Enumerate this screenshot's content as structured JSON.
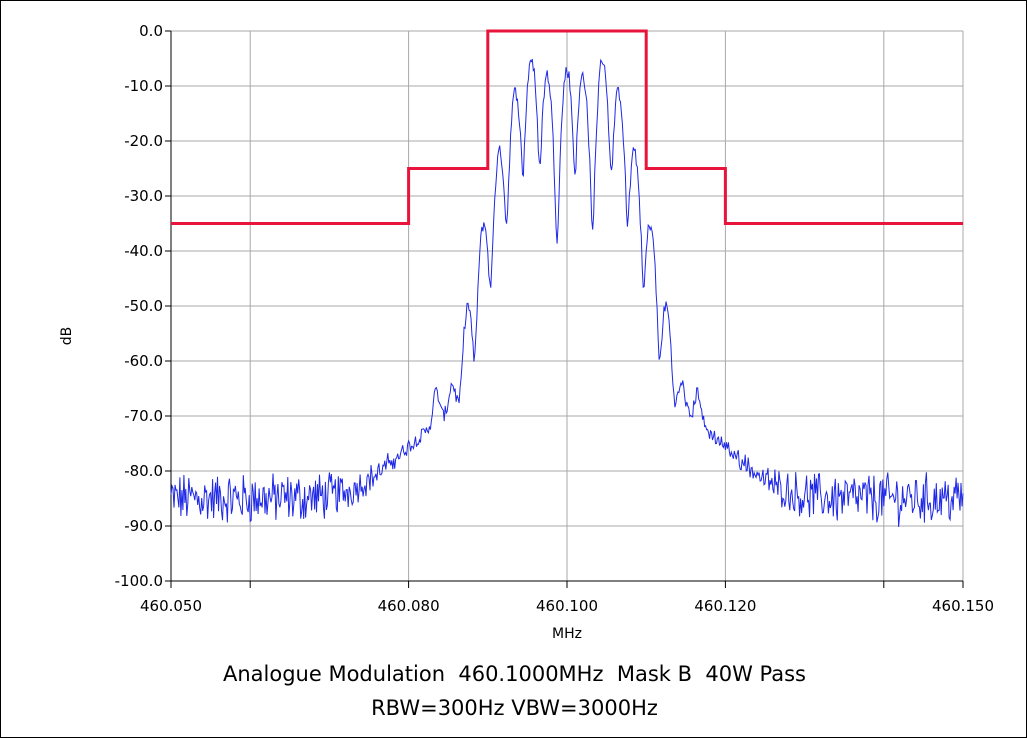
{
  "chart_data": {
    "type": "line",
    "title": "Analogue Modulation  460.1000MHz  Mask B  40W Pass",
    "subtitle": "RBW=300Hz VBW=3000Hz",
    "xlabel": "MHz",
    "ylabel": "dB",
    "xlim": [
      460.05,
      460.15
    ],
    "ylim": [
      -100,
      0
    ],
    "x_ticks": [
      460.05,
      460.06,
      460.08,
      460.1,
      460.12,
      460.14,
      460.15
    ],
    "x_tick_labels": [
      {
        "value": 460.05,
        "label": "460.050"
      },
      {
        "value": 460.08,
        "label": "460.080"
      },
      {
        "value": 460.1,
        "label": "460.100"
      },
      {
        "value": 460.12,
        "label": "460.120"
      },
      {
        "value": 460.15,
        "label": "460.150"
      }
    ],
    "y_ticks": [
      0,
      -10,
      -20,
      -30,
      -40,
      -50,
      -60,
      -70,
      -80,
      -90,
      -100
    ],
    "y_tick_labels": [
      "0.0",
      "-10.0",
      "-20.0",
      "-30.0",
      "-40.0",
      "-50.0",
      "-60.0",
      "-70.0",
      "-80.0",
      "-90.0",
      "-100.0"
    ],
    "grid": true,
    "series": [
      {
        "role": "mask",
        "color": "#e8143c",
        "x": [
          460.05,
          460.08,
          460.08,
          460.09,
          460.09,
          460.11,
          460.11,
          460.12,
          460.12,
          460.15
        ],
        "y": [
          -35,
          -35,
          -25,
          -25,
          0,
          0,
          -25,
          -25,
          -35,
          -35
        ]
      },
      {
        "role": "spectrum",
        "color": "#1e28e6",
        "peaks": [
          {
            "x": 460.0835,
            "y": -67
          },
          {
            "x": 460.0855,
            "y": -66
          },
          {
            "x": 460.0875,
            "y": -50
          },
          {
            "x": 460.0895,
            "y": -35
          },
          {
            "x": 460.0915,
            "y": -22
          },
          {
            "x": 460.0935,
            "y": -11
          },
          {
            "x": 460.0955,
            "y": -5
          },
          {
            "x": 460.0975,
            "y": -8
          },
          {
            "x": 460.1,
            "y": -7
          },
          {
            "x": 460.102,
            "y": -8
          },
          {
            "x": 460.1045,
            "y": -5
          },
          {
            "x": 460.1065,
            "y": -11
          },
          {
            "x": 460.1085,
            "y": -22
          },
          {
            "x": 460.1105,
            "y": -35
          },
          {
            "x": 460.1125,
            "y": -50
          },
          {
            "x": 460.1145,
            "y": -66
          },
          {
            "x": 460.1165,
            "y": -67
          }
        ],
        "noise_floor": -85
      }
    ]
  }
}
